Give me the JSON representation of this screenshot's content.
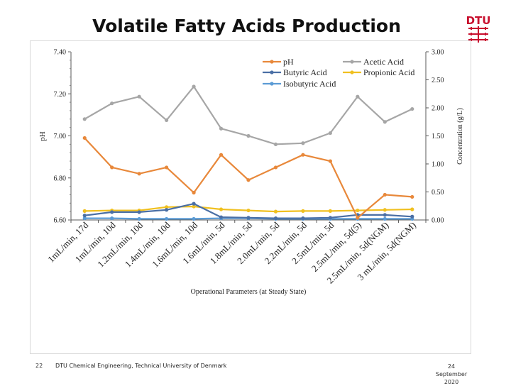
{
  "title": "Volatile Fatty Acids Production",
  "footer": {
    "page_number": "22",
    "institution": "DTU Chemical Engineering, Technical University of Denmark",
    "date_day": "24",
    "date_month": "September",
    "date_year": "2020"
  },
  "logo": {
    "text": "DTU",
    "color": "#c8102e"
  },
  "chart_data": {
    "type": "line",
    "title": "",
    "xlabel": "Operational Parameters (at Steady State)",
    "ylabel_left": "pH",
    "ylabel_right": "Concentration (g/L)",
    "ylim_left": [
      6.6,
      7.4
    ],
    "yticks_left": [
      "6.60",
      "6.80",
      "7.00",
      "7.20",
      "7.40"
    ],
    "ylim_right": [
      0.0,
      3.0
    ],
    "yticks_right": [
      "0.00",
      "0.50",
      "1.00",
      "1.50",
      "2.00",
      "2.50",
      "3.00"
    ],
    "legend_position": "top",
    "categories": [
      "1mL/min, 17d",
      "1mL/min, 10d",
      "1.2mL/min, 10d",
      "1.4mL/min, 10d",
      "1.6mL/min, 10d",
      "1.6mL/min, 5d",
      "1.8mL/min, 5d",
      "2.0mL/min, 5d",
      "2.2mL/min, 5d",
      "2.5mL/min, 5d",
      "2.5mL/min, 5d(5)",
      "2.5mL/min, 5d(NGM)",
      "3 mL/min, 5d(NGM)"
    ],
    "series": [
      {
        "name": "pH",
        "axis": "left",
        "color": "#e8883a",
        "values": [
          6.99,
          6.85,
          6.82,
          6.85,
          6.73,
          6.91,
          6.79,
          6.85,
          6.91,
          6.88,
          6.61,
          6.72,
          6.71
        ]
      },
      {
        "name": "Acetic Acid",
        "axis": "right",
        "color": "#a6a6a6",
        "values": [
          1.8,
          2.08,
          2.2,
          1.78,
          2.38,
          1.63,
          1.5,
          1.35,
          1.37,
          1.55,
          2.2,
          1.75,
          1.98
        ]
      },
      {
        "name": "Butyric Acid",
        "axis": "right",
        "color": "#4a6fa5",
        "values": [
          0.08,
          0.14,
          0.14,
          0.18,
          0.29,
          0.05,
          0.04,
          0.03,
          0.03,
          0.04,
          0.09,
          0.09,
          0.06
        ]
      },
      {
        "name": "Propionic Acid",
        "axis": "right",
        "color": "#f0c020",
        "values": [
          0.16,
          0.17,
          0.17,
          0.23,
          0.24,
          0.19,
          0.17,
          0.15,
          0.16,
          0.16,
          0.17,
          0.18,
          0.19
        ]
      },
      {
        "name": "Isobutyric Acid",
        "axis": "right",
        "color": "#5b9bd5",
        "values": [
          0.03,
          0.03,
          0.02,
          0.02,
          0.02,
          0.03,
          0.03,
          0.02,
          0.02,
          0.02,
          0.02,
          0.02,
          0.02
        ]
      }
    ]
  }
}
